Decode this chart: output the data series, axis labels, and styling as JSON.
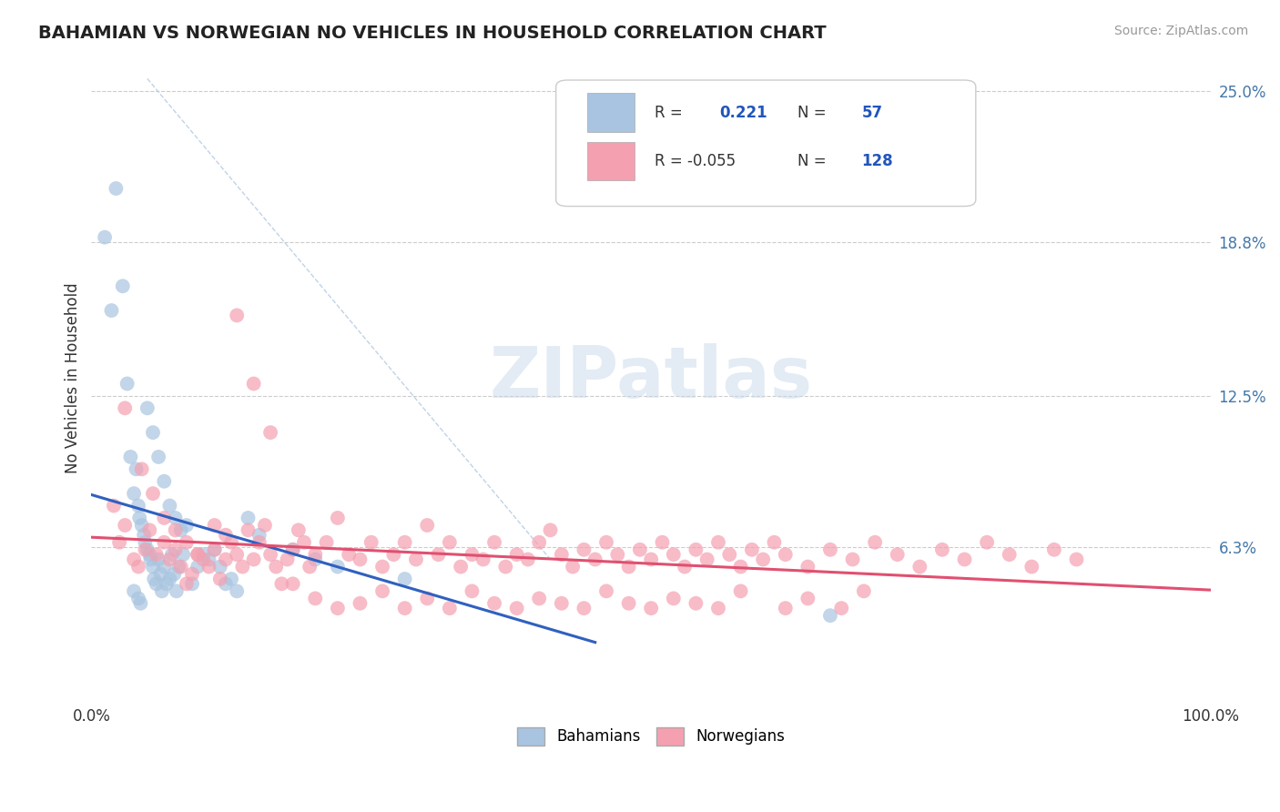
{
  "title": "BAHAMIAN VS NORWEGIAN NO VEHICLES IN HOUSEHOLD CORRELATION CHART",
  "source": "Source: ZipAtlas.com",
  "ylabel": "No Vehicles in Household",
  "xlim": [
    0.0,
    1.0
  ],
  "ylim": [
    0.0,
    0.265
  ],
  "ytick_labels": [
    "6.3%",
    "12.5%",
    "18.8%",
    "25.0%"
  ],
  "ytick_values": [
    0.063,
    0.125,
    0.188,
    0.25
  ],
  "bahamian_R": 0.221,
  "bahamian_N": 57,
  "norwegian_R": -0.055,
  "norwegian_N": 128,
  "bahamian_color": "#a8c4e0",
  "norwegian_color": "#f4a0b0",
  "bahamian_line_color": "#3060c0",
  "norwegian_line_color": "#e05070",
  "background_color": "#ffffff",
  "grid_color": "#cccccc",
  "bahamian_x": [
    0.012,
    0.018,
    0.022,
    0.028,
    0.032,
    0.035,
    0.038,
    0.04,
    0.042,
    0.043,
    0.045,
    0.047,
    0.048,
    0.05,
    0.052,
    0.053,
    0.055,
    0.056,
    0.058,
    0.06,
    0.062,
    0.063,
    0.065,
    0.067,
    0.07,
    0.072,
    0.074,
    0.076,
    0.078,
    0.082,
    0.085,
    0.09,
    0.095,
    0.1,
    0.105,
    0.11,
    0.115,
    0.12,
    0.125,
    0.13,
    0.14,
    0.15,
    0.18,
    0.2,
    0.22,
    0.28,
    0.05,
    0.055,
    0.06,
    0.065,
    0.07,
    0.075,
    0.08,
    0.038,
    0.042,
    0.044,
    0.66
  ],
  "bahamian_y": [
    0.19,
    0.16,
    0.21,
    0.17,
    0.13,
    0.1,
    0.085,
    0.095,
    0.08,
    0.075,
    0.072,
    0.068,
    0.065,
    0.062,
    0.06,
    0.058,
    0.055,
    0.05,
    0.048,
    0.058,
    0.052,
    0.045,
    0.055,
    0.048,
    0.05,
    0.06,
    0.052,
    0.045,
    0.055,
    0.06,
    0.072,
    0.048,
    0.055,
    0.06,
    0.058,
    0.062,
    0.055,
    0.048,
    0.05,
    0.045,
    0.075,
    0.068,
    0.062,
    0.058,
    0.055,
    0.05,
    0.12,
    0.11,
    0.1,
    0.09,
    0.08,
    0.075,
    0.07,
    0.045,
    0.042,
    0.04,
    0.035
  ],
  "norwegian_x": [
    0.02,
    0.025,
    0.03,
    0.038,
    0.042,
    0.048,
    0.052,
    0.058,
    0.065,
    0.07,
    0.075,
    0.08,
    0.085,
    0.09,
    0.095,
    0.1,
    0.105,
    0.11,
    0.115,
    0.12,
    0.125,
    0.13,
    0.135,
    0.14,
    0.145,
    0.15,
    0.155,
    0.16,
    0.165,
    0.17,
    0.175,
    0.18,
    0.185,
    0.19,
    0.195,
    0.2,
    0.21,
    0.22,
    0.23,
    0.24,
    0.25,
    0.26,
    0.27,
    0.28,
    0.29,
    0.3,
    0.31,
    0.32,
    0.33,
    0.34,
    0.35,
    0.36,
    0.37,
    0.38,
    0.39,
    0.4,
    0.41,
    0.42,
    0.43,
    0.44,
    0.45,
    0.46,
    0.47,
    0.48,
    0.49,
    0.5,
    0.51,
    0.52,
    0.53,
    0.54,
    0.55,
    0.56,
    0.57,
    0.58,
    0.59,
    0.6,
    0.61,
    0.62,
    0.64,
    0.66,
    0.68,
    0.7,
    0.72,
    0.74,
    0.76,
    0.78,
    0.8,
    0.82,
    0.84,
    0.86,
    0.88,
    0.03,
    0.045,
    0.055,
    0.065,
    0.075,
    0.085,
    0.095,
    0.11,
    0.12,
    0.13,
    0.145,
    0.16,
    0.18,
    0.2,
    0.22,
    0.24,
    0.26,
    0.28,
    0.3,
    0.32,
    0.34,
    0.36,
    0.38,
    0.4,
    0.42,
    0.44,
    0.46,
    0.48,
    0.5,
    0.52,
    0.54,
    0.56,
    0.58,
    0.62,
    0.64,
    0.67,
    0.69
  ],
  "norwegian_y": [
    0.08,
    0.065,
    0.072,
    0.058,
    0.055,
    0.062,
    0.07,
    0.06,
    0.065,
    0.058,
    0.062,
    0.055,
    0.048,
    0.052,
    0.06,
    0.058,
    0.055,
    0.062,
    0.05,
    0.058,
    0.065,
    0.06,
    0.055,
    0.07,
    0.058,
    0.065,
    0.072,
    0.06,
    0.055,
    0.048,
    0.058,
    0.062,
    0.07,
    0.065,
    0.055,
    0.06,
    0.065,
    0.075,
    0.06,
    0.058,
    0.065,
    0.055,
    0.06,
    0.065,
    0.058,
    0.072,
    0.06,
    0.065,
    0.055,
    0.06,
    0.058,
    0.065,
    0.055,
    0.06,
    0.058,
    0.065,
    0.07,
    0.06,
    0.055,
    0.062,
    0.058,
    0.065,
    0.06,
    0.055,
    0.062,
    0.058,
    0.065,
    0.06,
    0.055,
    0.062,
    0.058,
    0.065,
    0.06,
    0.055,
    0.062,
    0.058,
    0.065,
    0.06,
    0.055,
    0.062,
    0.058,
    0.065,
    0.06,
    0.055,
    0.062,
    0.058,
    0.065,
    0.06,
    0.055,
    0.062,
    0.058,
    0.12,
    0.095,
    0.085,
    0.075,
    0.07,
    0.065,
    0.06,
    0.072,
    0.068,
    0.158,
    0.13,
    0.11,
    0.048,
    0.042,
    0.038,
    0.04,
    0.045,
    0.038,
    0.042,
    0.038,
    0.045,
    0.04,
    0.038,
    0.042,
    0.04,
    0.038,
    0.045,
    0.04,
    0.038,
    0.042,
    0.04,
    0.038,
    0.045,
    0.038,
    0.042,
    0.038,
    0.045
  ]
}
